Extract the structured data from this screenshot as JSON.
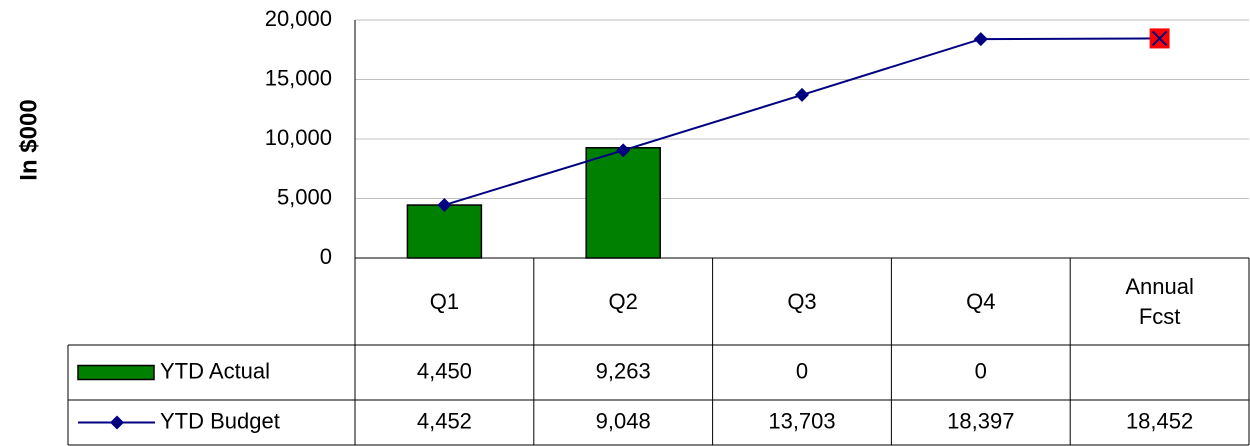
{
  "chart_data": {
    "type": "bar_line_table",
    "y_axis_label": "In $000",
    "categories": [
      "Q1",
      "Q2",
      "Q3",
      "Q4",
      "Annual Fcst"
    ],
    "series": [
      {
        "name": "YTD Actual",
        "type": "bar",
        "color": "#008000",
        "values": [
          4450,
          9263,
          0,
          0,
          null
        ],
        "value_labels": [
          "4,450",
          "9,263",
          "0",
          "0",
          null
        ]
      },
      {
        "name": "YTD Budget",
        "type": "line",
        "color": "#000080",
        "highlight_color": "#ff0000",
        "values": [
          4452,
          9048,
          13703,
          18397,
          18452
        ],
        "value_labels": [
          "4,452",
          "9,048",
          "13,703",
          "18,397",
          "18,452"
        ]
      }
    ],
    "ylim": [
      0,
      20000
    ],
    "yticks": [
      0,
      {
        "value": 5000,
        "label": "5,000"
      },
      {
        "value": 10000,
        "label": "10,000"
      },
      {
        "value": 15000,
        "label": "15,000"
      },
      {
        "value": 20000,
        "label": "20,000"
      }
    ],
    "grid": true
  }
}
